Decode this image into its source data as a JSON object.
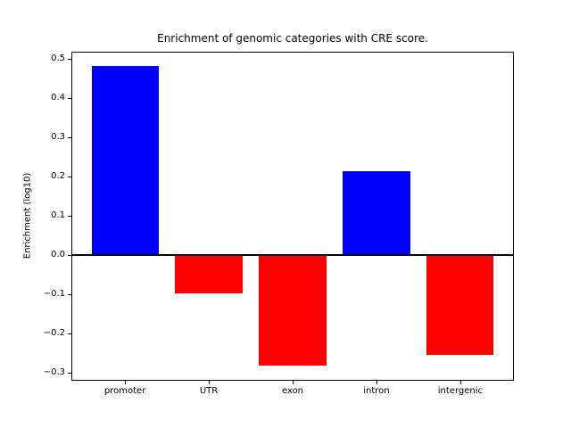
{
  "chart_data": {
    "type": "bar",
    "title": "Enrichment of genomic categories with CRE score.",
    "xlabel": "",
    "ylabel": "Enrichment (log10)",
    "categories": [
      "promoter",
      "UTR",
      "exon",
      "intron",
      "intergenic"
    ],
    "values": [
      0.48,
      -0.098,
      -0.283,
      0.213,
      -0.256
    ],
    "colors": [
      "#0000ff",
      "#ff0000",
      "#ff0000",
      "#0000ff",
      "#ff0000"
    ],
    "positive_color": "#0000ff",
    "negative_color": "#ff0000",
    "yticks": [
      0.5,
      0.4,
      0.3,
      0.2,
      0.1,
      0.0,
      -0.1,
      -0.2,
      -0.3
    ],
    "yticklabels": [
      "0.5",
      "0.4",
      "0.3",
      "0.2",
      "0.1",
      "0.0",
      "−0.1",
      "−0.2",
      "−0.3"
    ],
    "ylim": [
      -0.322,
      0.518
    ],
    "xlim": [
      -0.64,
      4.64
    ],
    "bar_width": 0.8,
    "zero_line": true,
    "grid": false,
    "legend": "none",
    "axis_color": "#000000",
    "background_color": "#ffffff"
  }
}
